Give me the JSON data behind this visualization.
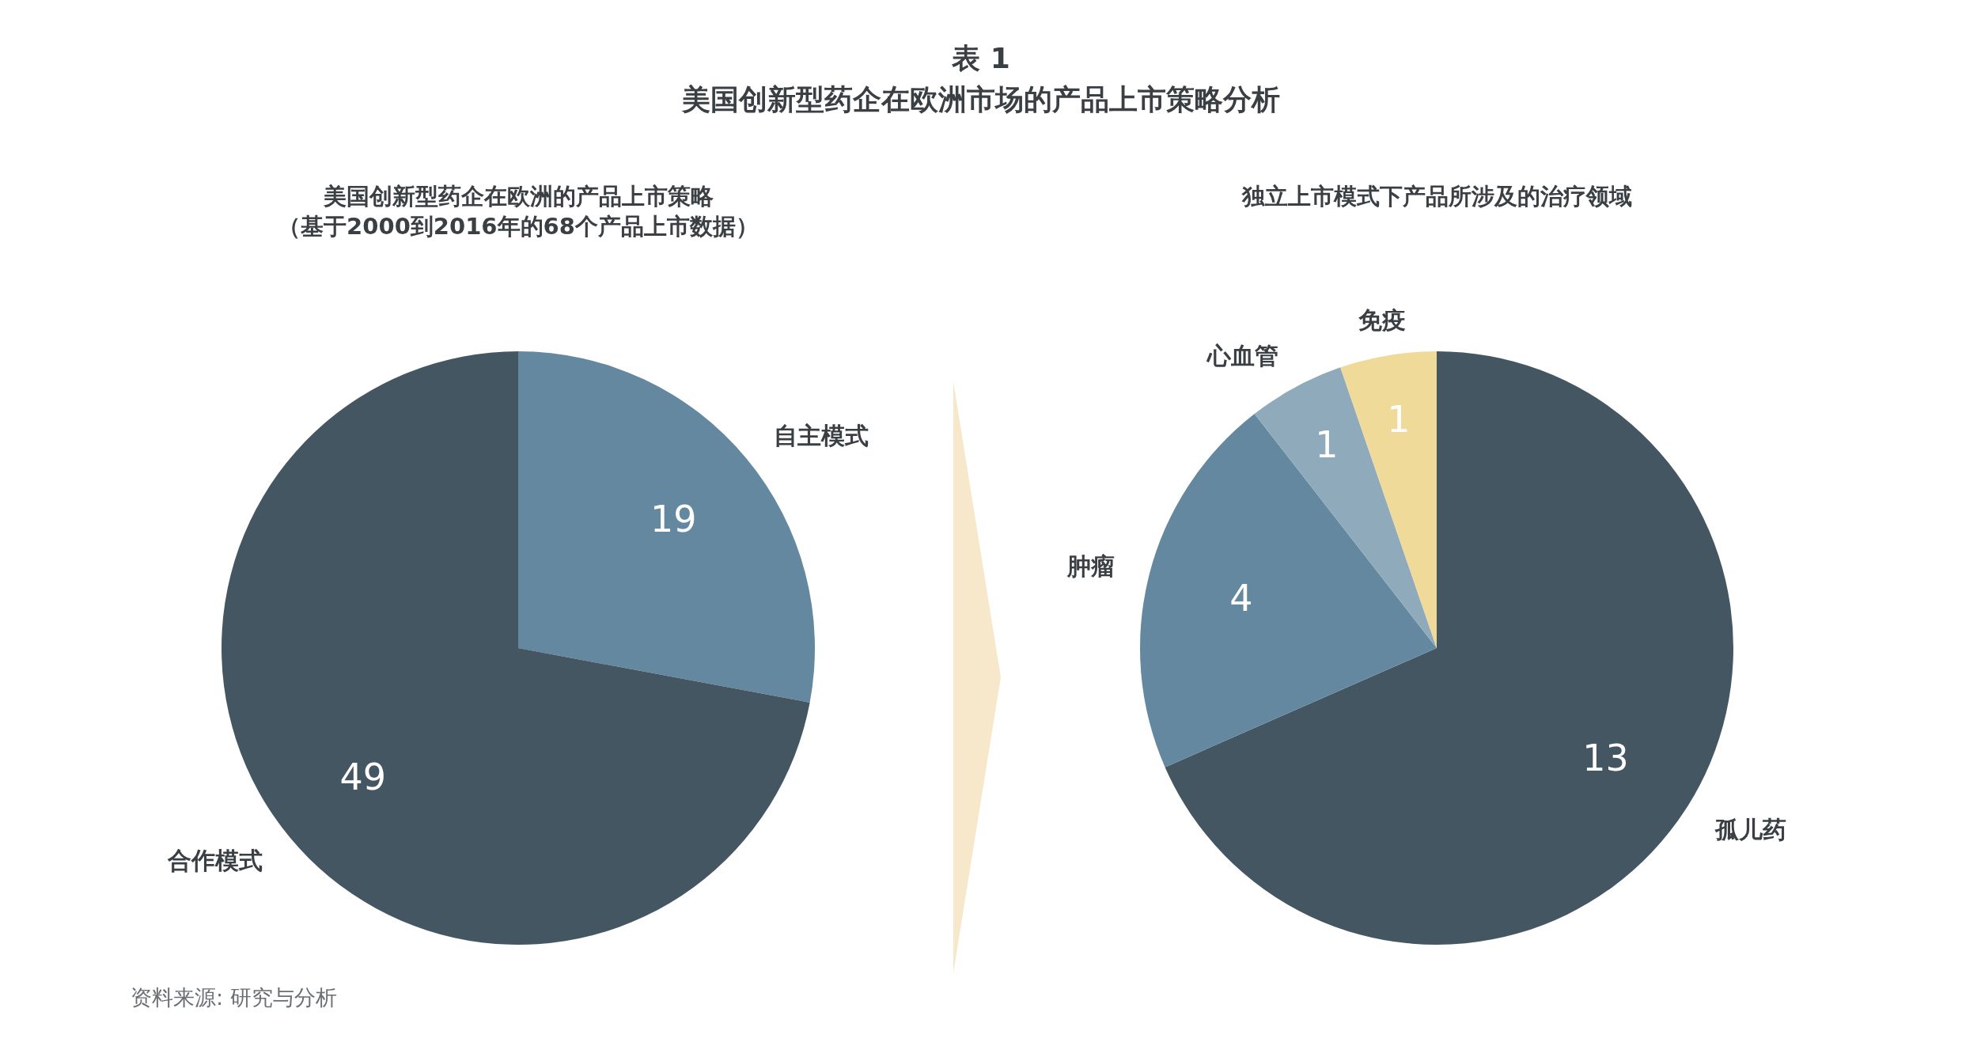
{
  "chart_data": [
    {
      "type": "other",
      "title": "表 1",
      "subtitle": "美国创新型药企在欧洲市场的产品上市策略分析"
    },
    {
      "type": "pie",
      "title": "美国创新型药企在欧洲的产品上市策略",
      "subtitle": "（基于2000到2016年的68个产品上市数据）",
      "categories": [
        "自主模式",
        "合作模式"
      ],
      "values": [
        19,
        49
      ],
      "colors": [
        "#64889f",
        "#455663"
      ],
      "data_labels": true,
      "annotations": [
        "资料来源: 研究与分析"
      ]
    },
    {
      "type": "pie",
      "title": "独立上市模式下产品所涉及的治疗领域",
      "categories": [
        "孤儿药",
        "肿瘤",
        "心血管",
        "免疫"
      ],
      "values": [
        13,
        4,
        1,
        1
      ],
      "colors": [
        "#455663",
        "#64889f",
        "#8fabbb",
        "#efda9a"
      ],
      "data_labels": true
    }
  ]
}
